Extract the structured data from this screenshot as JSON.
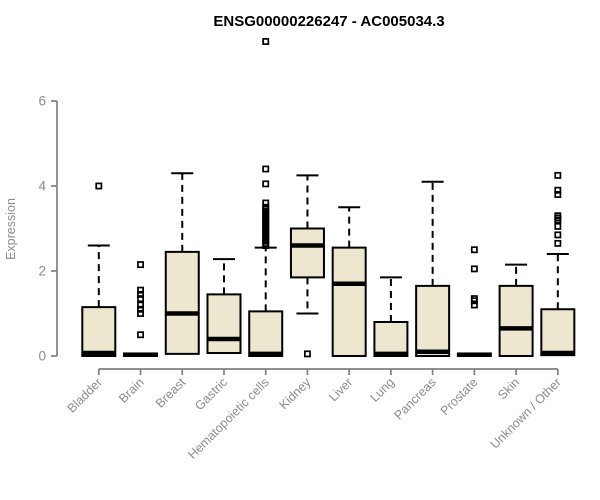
{
  "chart_data": {
    "type": "boxplot",
    "title": "ENSG00000226247 - AC005034.3",
    "ylabel": "Expression",
    "ylim": [
      0,
      6
    ],
    "yticks": [
      0,
      2,
      4,
      6
    ],
    "grid": false,
    "legend": "none",
    "colors": {
      "box_fill": "#ece7ce",
      "box_stroke": "#000000",
      "median": "#000000",
      "axis_line": "#808080",
      "tick_text": "#8c8c8c",
      "title_text": "#000000"
    },
    "categories": [
      "Bladder",
      "Brain",
      "Breast",
      "Gastric",
      "Hematopoietic cells",
      "Kidney",
      "Liver",
      "Lung",
      "Pancreas",
      "Prostate",
      "Skin",
      "Unknown / Other"
    ],
    "boxes": [
      {
        "label": "Bladder",
        "whisker_low": 0,
        "q1": 0,
        "median": 0.07,
        "q3": 1.15,
        "whisker_high": 2.6,
        "outliers": [
          4.0
        ]
      },
      {
        "label": "Brain",
        "whisker_low": 0,
        "q1": 0,
        "median": 0.03,
        "q3": 0.06,
        "whisker_high": 0.08,
        "outliers": [
          2.15,
          1.55,
          1.45,
          1.35,
          1.2,
          1.1,
          1.0,
          0.5
        ]
      },
      {
        "label": "Breast",
        "whisker_low": 0.05,
        "q1": 0.05,
        "median": 1.0,
        "q3": 2.45,
        "whisker_high": 4.3,
        "outliers": []
      },
      {
        "label": "Gastric",
        "whisker_low": 0.07,
        "q1": 0.07,
        "median": 0.4,
        "q3": 1.45,
        "whisker_high": 2.28,
        "outliers": []
      },
      {
        "label": "Hematopoietic cells",
        "whisker_low": 0,
        "q1": 0,
        "median": 0.05,
        "q3": 1.05,
        "whisker_high": 2.55,
        "outliers": [
          7.4,
          4.4,
          4.05,
          3.6,
          3.5,
          3.45,
          3.4,
          3.35,
          3.3,
          3.25,
          3.2,
          3.15,
          3.1,
          3.05,
          3.0,
          2.95,
          2.9,
          2.85,
          2.8,
          2.75,
          2.7,
          2.65,
          2.6
        ]
      },
      {
        "label": "Kidney",
        "whisker_low": 1.0,
        "q1": 1.85,
        "median": 2.6,
        "q3": 3.0,
        "whisker_high": 4.25,
        "outliers": [
          0.05
        ]
      },
      {
        "label": "Liver",
        "whisker_low": 0,
        "q1": 0,
        "median": 1.7,
        "q3": 2.55,
        "whisker_high": 3.5,
        "outliers": []
      },
      {
        "label": "Lung",
        "whisker_low": 0,
        "q1": 0,
        "median": 0.05,
        "q3": 0.8,
        "whisker_high": 1.85,
        "outliers": []
      },
      {
        "label": "Pancreas",
        "whisker_low": 0,
        "q1": 0,
        "median": 0.1,
        "q3": 1.65,
        "whisker_high": 4.1,
        "outliers": []
      },
      {
        "label": "Prostate",
        "whisker_low": 0,
        "q1": 0,
        "median": 0.03,
        "q3": 0.06,
        "whisker_high": 0.08,
        "outliers": [
          2.5,
          2.05,
          1.35,
          1.3,
          1.2
        ]
      },
      {
        "label": "Skin",
        "whisker_low": 0,
        "q1": 0,
        "median": 0.65,
        "q3": 1.65,
        "whisker_high": 2.15,
        "outliers": []
      },
      {
        "label": "Unknown / Other",
        "whisker_low": 0,
        "q1": 0.02,
        "median": 0.07,
        "q3": 1.1,
        "whisker_high": 2.4,
        "outliers": [
          4.25,
          3.9,
          3.8,
          3.3,
          3.25,
          3.2,
          3.05,
          2.85,
          2.65
        ]
      }
    ]
  }
}
